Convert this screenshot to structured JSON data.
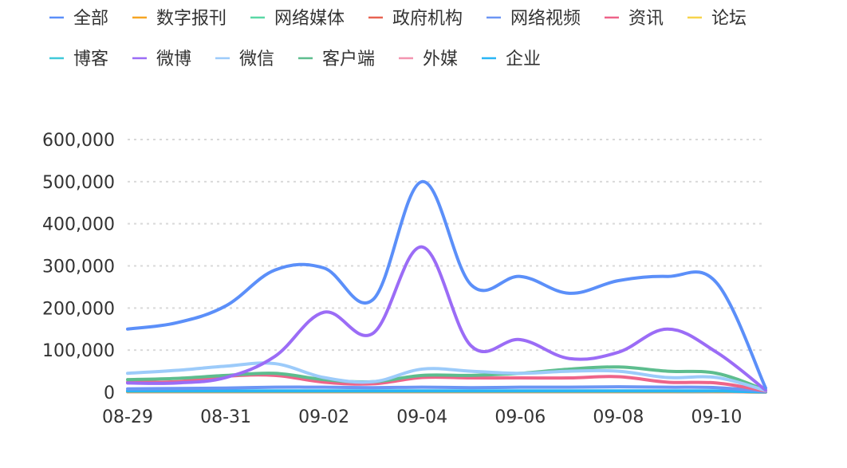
{
  "chart_data": {
    "type": "line",
    "x": [
      "08-29",
      "08-30",
      "08-31",
      "09-01",
      "09-02",
      "09-03",
      "09-04",
      "09-05",
      "09-06",
      "09-07",
      "09-08",
      "09-09",
      "09-10",
      "09-11"
    ],
    "x_tick_labels": [
      "08-29",
      "08-31",
      "09-02",
      "09-04",
      "09-06",
      "09-08",
      "09-10"
    ],
    "ylim": [
      0,
      600000
    ],
    "y_tick_labels": [
      "0",
      "100,000",
      "200,000",
      "300,000",
      "400,000",
      "500,000",
      "600,000"
    ],
    "grid": true,
    "legend_position": "top",
    "series": [
      {
        "name": "全部",
        "color": "#5b8ff9",
        "values": [
          150000,
          165000,
          205000,
          290000,
          295000,
          220000,
          500000,
          255000,
          275000,
          235000,
          265000,
          275000,
          260000,
          10000
        ]
      },
      {
        "name": "数字报刊",
        "color": "#f6a623",
        "values": [
          2000,
          2000,
          2000,
          2000,
          2000,
          2000,
          2000,
          2000,
          2000,
          2000,
          2000,
          2000,
          2000,
          1000
        ]
      },
      {
        "name": "网络媒体",
        "color": "#5ad8a6",
        "values": [
          3000,
          3000,
          3000,
          3000,
          3000,
          3000,
          3000,
          3000,
          3000,
          3000,
          3000,
          3000,
          3000,
          1000
        ]
      },
      {
        "name": "政府机构",
        "color": "#e86452",
        "values": [
          1500,
          1500,
          1500,
          1500,
          1500,
          1500,
          1500,
          1500,
          1500,
          1500,
          1500,
          1500,
          1500,
          500
        ]
      },
      {
        "name": "网络视频",
        "color": "#6c96f4",
        "values": [
          8000,
          9000,
          10000,
          12000,
          12000,
          11000,
          12000,
          11000,
          12000,
          12000,
          13000,
          12000,
          11000,
          2000
        ]
      },
      {
        "name": "资讯",
        "color": "#ee6489",
        "values": [
          24000,
          25000,
          38000,
          40000,
          24000,
          20000,
          35000,
          34000,
          34000,
          34000,
          37000,
          24000,
          22000,
          3000
        ]
      },
      {
        "name": "论坛",
        "color": "#f7d44b",
        "values": [
          1500,
          1500,
          1500,
          1500,
          1500,
          1500,
          1500,
          1500,
          1500,
          1500,
          1500,
          1500,
          1500,
          500
        ]
      },
      {
        "name": "博客",
        "color": "#40c9d9",
        "values": [
          1000,
          1000,
          1000,
          1000,
          1000,
          1000,
          1000,
          1000,
          1000,
          1000,
          1000,
          1000,
          1000,
          500
        ]
      },
      {
        "name": "微博",
        "color": "#9b6cf6",
        "values": [
          22000,
          22000,
          35000,
          85000,
          190000,
          140000,
          345000,
          110000,
          125000,
          80000,
          95000,
          150000,
          95000,
          5000
        ]
      },
      {
        "name": "微信",
        "color": "#9ccbfa",
        "values": [
          45000,
          52000,
          62000,
          68000,
          35000,
          25000,
          55000,
          50000,
          45000,
          50000,
          50000,
          35000,
          35000,
          4000
        ]
      },
      {
        "name": "客户端",
        "color": "#5dbd8e",
        "values": [
          30000,
          33000,
          40000,
          45000,
          30000,
          25000,
          40000,
          40000,
          45000,
          55000,
          60000,
          50000,
          45000,
          5000
        ]
      },
      {
        "name": "外媒",
        "color": "#f394b0",
        "values": [
          1500,
          1500,
          1500,
          1500,
          1500,
          1500,
          1500,
          1500,
          1500,
          1500,
          1500,
          1500,
          1500,
          500
        ]
      },
      {
        "name": "企业",
        "color": "#29b6f6",
        "values": [
          3000,
          3000,
          3000,
          3000,
          3000,
          3000,
          3000,
          3000,
          3000,
          3000,
          3000,
          3000,
          3000,
          1000
        ]
      }
    ]
  }
}
